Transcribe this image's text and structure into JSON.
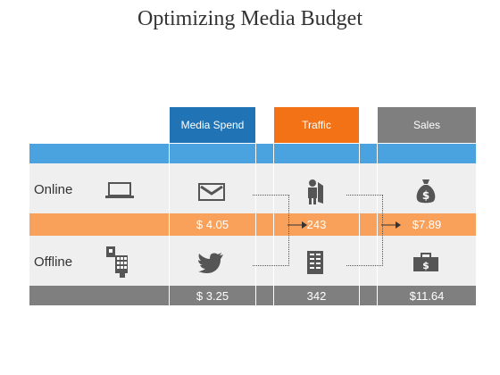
{
  "title": "Optimizing Media Budget",
  "columns": [
    {
      "label": "Media Spend",
      "color": "#2074b5"
    },
    {
      "label": "Traffic",
      "color": "#f47216"
    },
    {
      "label": "Sales",
      "color": "#7f7f7f"
    }
  ],
  "rows": {
    "online": {
      "label": "Online",
      "icon": "laptop-icon",
      "col_icons": [
        "envelope-icon",
        "visitor-icon",
        "money-bag-icon"
      ],
      "values": [
        "$ 4.05",
        "243",
        "$7.89"
      ]
    },
    "offline": {
      "label": "Offline",
      "icon": "phone-keypad-icon",
      "col_icons": [
        "twitter-bird-icon",
        "building-icon",
        "briefcase-icon"
      ],
      "values": [
        "$ 3.25",
        "342",
        "$11.64"
      ]
    }
  },
  "colors": {
    "accent_blue": "#4aa3df",
    "orange_row": "#f9a15a",
    "gray_row": "#7f7f7f",
    "light_bg": "#efefef"
  }
}
